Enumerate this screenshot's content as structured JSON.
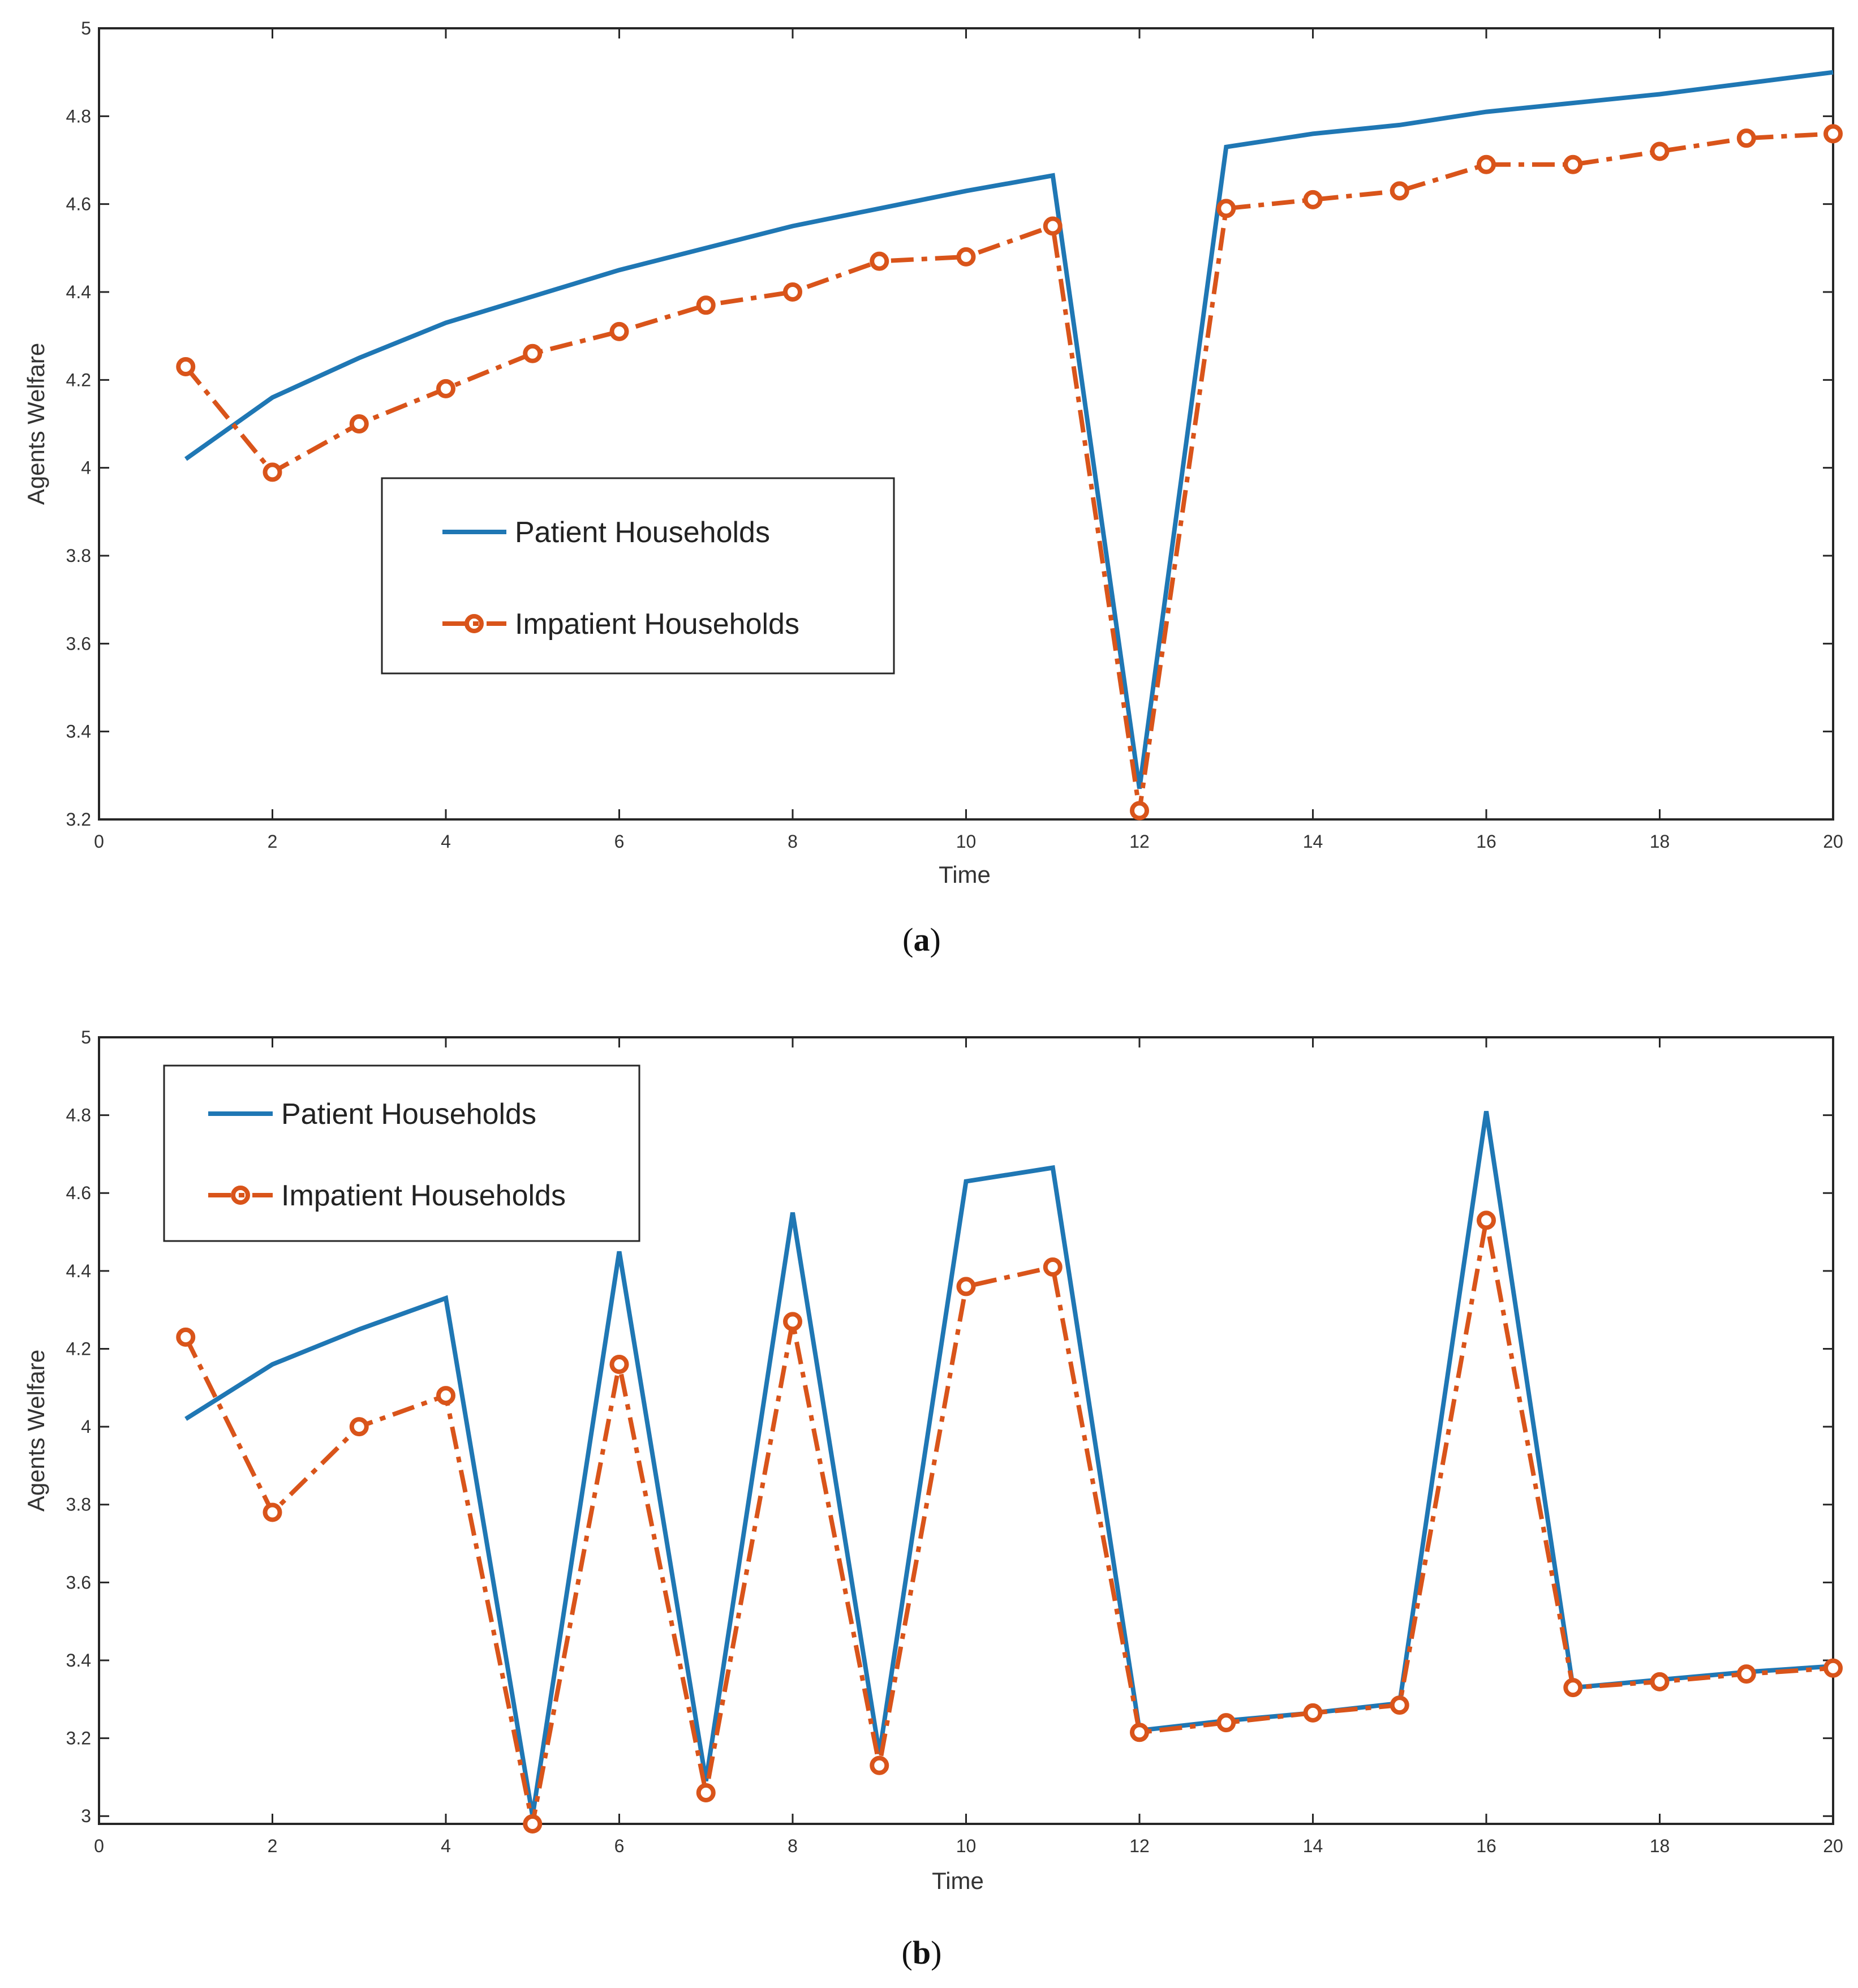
{
  "chart_data": [
    {
      "type": "line",
      "panel": "a",
      "caption_letter": "a",
      "xlabel": "Time",
      "ylabel": "Agents Welfare",
      "xlim": [
        0,
        20
      ],
      "ylim": [
        3.2,
        5
      ],
      "xticks": [
        0,
        2,
        4,
        6,
        8,
        10,
        12,
        14,
        16,
        18,
        20
      ],
      "yticks": [
        3.2,
        3.4,
        3.6,
        3.8,
        4,
        4.2,
        4.4,
        4.6,
        4.8,
        5
      ],
      "legend_position": "center-left",
      "x": [
        1,
        2,
        3,
        4,
        5,
        6,
        7,
        8,
        9,
        10,
        11,
        12,
        13,
        14,
        15,
        16,
        17,
        18,
        19,
        20
      ],
      "series": [
        {
          "name": "Patient Households",
          "color": "#1f77b4",
          "style": "solid",
          "values": [
            4.02,
            4.16,
            4.25,
            4.33,
            4.39,
            4.45,
            4.5,
            4.55,
            4.59,
            4.63,
            4.665,
            3.27,
            4.73,
            4.76,
            4.78,
            4.81,
            4.83,
            4.85,
            4.875,
            4.9
          ]
        },
        {
          "name": "Impatient Households",
          "color": "#d9541a",
          "style": "dash-dot-marker",
          "values": [
            4.23,
            3.99,
            4.1,
            4.18,
            4.26,
            4.31,
            4.37,
            4.4,
            4.47,
            4.48,
            4.55,
            3.22,
            4.59,
            4.61,
            4.63,
            4.69,
            4.69,
            4.72,
            4.75,
            4.76
          ]
        }
      ]
    },
    {
      "type": "line",
      "panel": "b",
      "caption_letter": "b",
      "xlabel": "Time",
      "ylabel": "Agents Welfare",
      "xlim": [
        0,
        20
      ],
      "ylim": [
        2.98,
        5
      ],
      "xticks": [
        0,
        2,
        4,
        6,
        8,
        10,
        12,
        14,
        16,
        18,
        20
      ],
      "yticks": [
        3,
        3.2,
        3.4,
        3.6,
        3.8,
        4,
        4.2,
        4.4,
        4.6,
        4.8,
        5
      ],
      "legend_position": "top-left",
      "x": [
        1,
        2,
        3,
        4,
        5,
        6,
        7,
        8,
        9,
        10,
        11,
        12,
        13,
        14,
        15,
        16,
        17,
        18,
        19,
        20
      ],
      "series": [
        {
          "name": "Patient Households",
          "color": "#1f77b4",
          "style": "solid",
          "values": [
            4.02,
            4.16,
            4.25,
            4.33,
            3.0,
            4.45,
            3.09,
            4.55,
            3.16,
            4.63,
            4.665,
            3.22,
            3.245,
            3.265,
            3.29,
            4.81,
            3.33,
            3.35,
            3.37,
            3.385
          ]
        },
        {
          "name": "Impatient Households",
          "color": "#d9541a",
          "style": "dash-dot-marker",
          "values": [
            4.23,
            3.78,
            4.0,
            4.08,
            2.98,
            4.16,
            3.06,
            4.27,
            3.13,
            4.36,
            4.41,
            3.215,
            3.24,
            3.265,
            3.285,
            4.53,
            3.33,
            3.345,
            3.365,
            3.38
          ]
        }
      ]
    }
  ]
}
